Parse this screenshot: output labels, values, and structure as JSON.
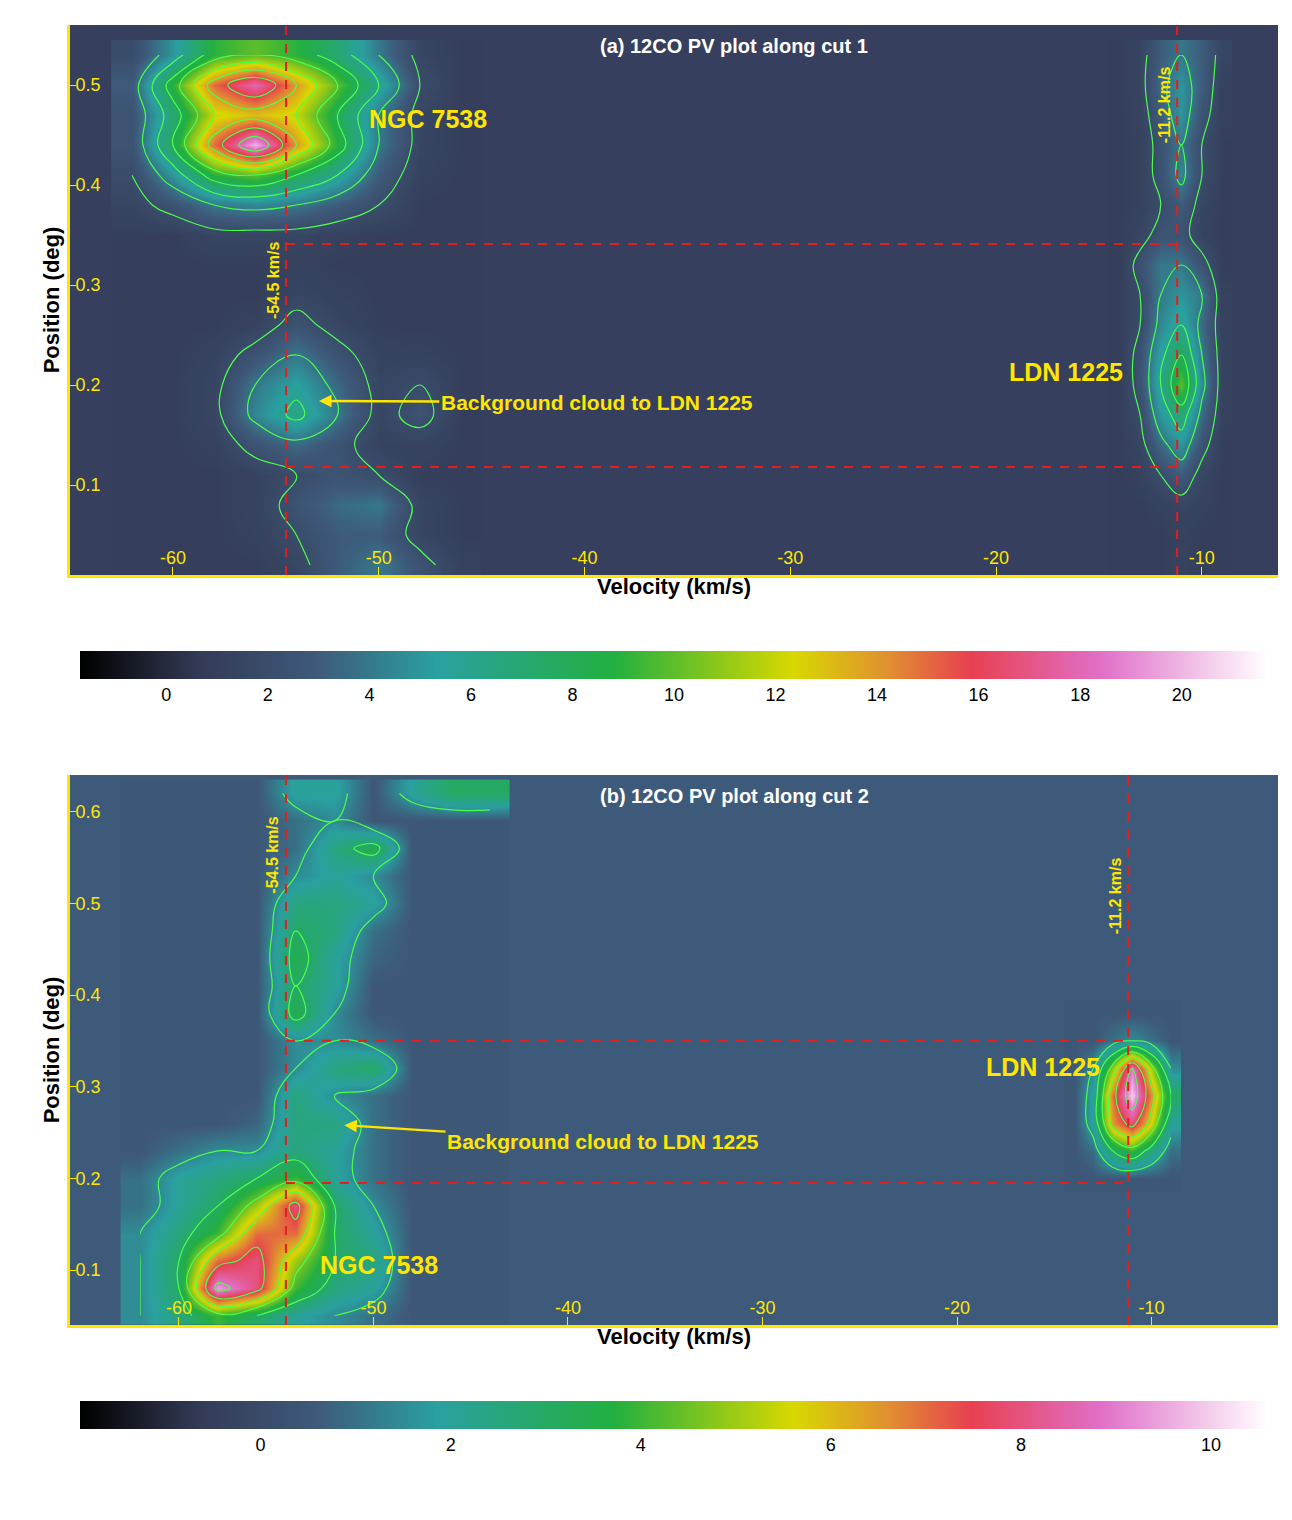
{
  "chart_data": [
    {
      "type": "heatmap",
      "title": "(a) 12CO PV plot along cut 1",
      "x_label": "Velocity (km/s)",
      "y_label": "Position (deg)",
      "xlim": [
        -65,
        -6.3
      ],
      "xticks": [
        -60,
        -50,
        -40,
        -30,
        -20,
        -10
      ],
      "ylim": [
        0.01,
        0.56
      ],
      "yticks": [
        0.1,
        0.2,
        0.3,
        0.4,
        0.5
      ],
      "grid": false,
      "zlim": [
        -1.7,
        21.7
      ],
      "zticks": [
        0,
        2,
        4,
        6,
        8,
        10,
        12,
        14,
        16,
        18,
        20
      ],
      "contour_levels": {
        "start": 2,
        "end": 20,
        "size": 2
      },
      "regions": [
        {
          "x": [
            -62,
            -60,
            -58,
            -56,
            -54,
            -52,
            -50,
            -48,
            -46
          ],
          "y": [
            0.02,
            0.05,
            0.08,
            0.11,
            0.14,
            0.17,
            0.2,
            0.23,
            0.26,
            0.29,
            0.32,
            0.35,
            0.38,
            0.41,
            0.44,
            0.47,
            0.5,
            0.53
          ],
          "z": [
            [
              1,
              1,
              1,
              1,
              1.5,
              3,
              4,
              2.5,
              1.2
            ],
            [
              1,
              1,
              1,
              1.2,
              2,
              3,
              3,
              1.5,
              1
            ],
            [
              1,
              1,
              1,
              1.3,
              2.5,
              3.5,
              4,
              1.5,
              1
            ],
            [
              1,
              1,
              1,
              1.3,
              2,
              2.5,
              2,
              1,
              1
            ],
            [
              1,
              1,
              1.2,
              2.5,
              3.5,
              2.5,
              1.3,
              1.3,
              1
            ],
            [
              1,
              1,
              1.5,
              4.5,
              6.5,
              4,
              1.5,
              2.5,
              1
            ],
            [
              1,
              1,
              1.5,
              4,
              5.5,
              3.5,
              1.5,
              2,
              1
            ],
            [
              1,
              1,
              1.3,
              2.5,
              4,
              2.5,
              1.3,
              1.2,
              1
            ],
            [
              1,
              1,
              1,
              1.3,
              2.5,
              1.5,
              1,
              1,
              1
            ],
            [
              1,
              1,
              1,
              1,
              1.5,
              1.2,
              1,
              1,
              1
            ],
            [
              1,
              1,
              1,
              1,
              1.2,
              1,
              1,
              1,
              1
            ],
            [
              1,
              1,
              1.5,
              1.5,
              1.5,
              1.2,
              1,
              1,
              1
            ],
            [
              1.5,
              2.5,
              4,
              4.5,
              4,
              3,
              2,
              1,
              1
            ],
            [
              2,
              5,
              9,
              10,
              8,
              6,
              3,
              1.2,
              1
            ],
            [
              2.5,
              8,
              15,
              20,
              14,
              9,
              4,
              1.5,
              1
            ],
            [
              2.5,
              7,
              12,
              13,
              12,
              8,
              4,
              1.5,
              1
            ],
            [
              3,
              9,
              15,
              18,
              14,
              10,
              6,
              2,
              1
            ],
            [
              2,
              5,
              9,
              10,
              9,
              7,
              4,
              1.5,
              1
            ]
          ]
        },
        {
          "x": [
            -14,
            -13,
            -12,
            -11,
            -10,
            -9
          ],
          "y": [
            0.02,
            0.05,
            0.08,
            0.11,
            0.14,
            0.17,
            0.2,
            0.23,
            0.26,
            0.29,
            0.32,
            0.35,
            0.38,
            0.41,
            0.44,
            0.47,
            0.5,
            0.53
          ],
          "z": [
            [
              1,
              1,
              1,
              1.3,
              1,
              1
            ],
            [
              1,
              1,
              1,
              1.2,
              1,
              1
            ],
            [
              1,
              1,
              1.2,
              1.5,
              1.2,
              1
            ],
            [
              1,
              1.2,
              2,
              3,
              1.5,
              1
            ],
            [
              1,
              1.5,
              3.5,
              5,
              2.5,
              1
            ],
            [
              1,
              2,
              5,
              7,
              3.5,
              1.2
            ],
            [
              1,
              2.5,
              6,
              10,
              4.5,
              1.3
            ],
            [
              1,
              2.5,
              5.5,
              8,
              4,
              1.3
            ],
            [
              1,
              2,
              4.5,
              6,
              3.5,
              1.2
            ],
            [
              1,
              2,
              4,
              5,
              4,
              1.2
            ],
            [
              1,
              2.5,
              4,
              4,
              2.5,
              1
            ],
            [
              1,
              1.5,
              2.5,
              2.5,
              1.3,
              1
            ],
            [
              1,
              1.2,
              2,
              3,
              1.5,
              1
            ],
            [
              1,
              1.2,
              2.5,
              4.5,
              2,
              1
            ],
            [
              1,
              1.2,
              2.5,
              4,
              2,
              1
            ],
            [
              1,
              1.3,
              3,
              5,
              2.5,
              1.2
            ],
            [
              1,
              1.5,
              3.5,
              5,
              3,
              1.2
            ],
            [
              1,
              1.5,
              3,
              4,
              3,
              1.5
            ]
          ]
        }
      ],
      "velocity_markers": [
        {
          "value": -54.5,
          "label": "-54.5 km/s",
          "label_y": 0.304
        },
        {
          "value": -11.2,
          "label": "-11.2 km/s",
          "label_y": 0.48
        }
      ],
      "position_range": [
        0.118,
        0.341
      ],
      "annotations": [
        {
          "text": "NGC 7538",
          "x": -47.6,
          "y": 0.466
        },
        {
          "text": "LDN 1225",
          "x": -16.6,
          "y": 0.213
        },
        {
          "text": "Background cloud to LDN 1225",
          "x": -39.4,
          "y": 0.183,
          "arrow_x": -52.9,
          "arrow_y": 0.184
        }
      ]
    },
    {
      "type": "heatmap",
      "title": "(b) 12CO PV plot along cut 2",
      "x_label": "Velocity (km/s)",
      "y_label": "Position (deg)",
      "xlim": [
        -65.6,
        -3.5
      ],
      "xticks": [
        -60,
        -50,
        -40,
        -30,
        -20,
        -10
      ],
      "ylim": [
        0.04,
        0.64
      ],
      "yticks": [
        0.1,
        0.2,
        0.3,
        0.4,
        0.5,
        0.6
      ],
      "grid": false,
      "zlim": [
        -1.9,
        10.6
      ],
      "zticks": [
        0,
        2,
        4,
        6,
        8,
        10
      ],
      "contour_levels": {
        "start": 1.5,
        "end": 10.5,
        "size": 1.5
      },
      "regions": [
        {
          "x": [
            -62,
            -60,
            -58,
            -56,
            -54,
            -52,
            -50,
            -48,
            -46,
            -44
          ],
          "y": [
            0.05,
            0.08,
            0.11,
            0.14,
            0.17,
            0.2,
            0.23,
            0.26,
            0.29,
            0.32,
            0.35,
            0.38,
            0.41,
            0.44,
            0.47,
            0.5,
            0.53,
            0.56,
            0.59,
            0.62
          ],
          "z": [
            [
              1.5,
              2.5,
              4,
              3,
              2,
              1.5,
              1,
              0.5,
              0.5,
              0.5
            ],
            [
              1.5,
              3,
              9.5,
              8,
              4,
              2.5,
              2,
              0.5,
              0.5,
              0.5
            ],
            [
              1.5,
              3,
              7,
              8,
              5,
              3,
              2.5,
              0.5,
              0.5,
              0.5
            ],
            [
              1.5,
              2.5,
              4,
              7,
              7,
              3,
              2,
              0.5,
              0.5,
              0.5
            ],
            [
              1,
              2,
              3,
              5,
              8,
              3,
              1.5,
              0.5,
              0.5,
              0.5
            ],
            [
              1,
              2,
              2.5,
              3,
              4,
              2,
              1,
              0.5,
              0.5,
              0.5
            ],
            [
              0.5,
              1,
              1.5,
              1.5,
              2.5,
              2,
              1,
              0.5,
              0.5,
              0.5
            ],
            [
              0.5,
              0.5,
              0.5,
              0.8,
              2.5,
              2.5,
              1,
              0.5,
              0.5,
              0.5
            ],
            [
              0.5,
              0.5,
              0.5,
              0.5,
              2.5,
              1.5,
              1,
              0.5,
              0.5,
              0.5
            ],
            [
              0.5,
              0.5,
              0.5,
              0.5,
              1.5,
              2.5,
              3,
              0.5,
              0.5,
              0.5
            ],
            [
              0.5,
              0.5,
              0.5,
              0.5,
              1.5,
              1.5,
              1,
              0.5,
              0.5,
              0.5
            ],
            [
              0.5,
              0.5,
              0.5,
              0.5,
              3.5,
              1.5,
              0.5,
              0.5,
              0.5,
              0.5
            ],
            [
              0.5,
              0.5,
              0.5,
              0.5,
              3,
              2,
              0.5,
              0.5,
              0.5,
              0.5
            ],
            [
              0.5,
              0.5,
              0.5,
              0.5,
              3.5,
              2,
              0.8,
              0.5,
              0.5,
              0.5
            ],
            [
              0.5,
              0.5,
              0.5,
              0.5,
              3,
              2.5,
              1,
              0.5,
              0.5,
              0.5
            ],
            [
              0.5,
              0.5,
              0.5,
              0.5,
              2.5,
              2.5,
              2,
              0.5,
              0.5,
              0.5
            ],
            [
              0.5,
              0.5,
              0.5,
              0.5,
              1.5,
              2,
              1.5,
              0.5,
              0.5,
              0.5
            ],
            [
              0.5,
              0.5,
              0.5,
              0.5,
              1,
              2.5,
              3.5,
              0.5,
              0.5,
              0.5
            ],
            [
              0.5,
              0.5,
              0.5,
              0.5,
              1,
              1.5,
              0.5,
              0.5,
              0.5,
              0.5
            ],
            [
              0.5,
              0.5,
              0.5,
              0.5,
              2,
              2,
              0.5,
              2,
              3,
              3
            ]
          ]
        },
        {
          "x": [
            -14,
            -13,
            -12,
            -11,
            -10,
            -9
          ],
          "y": [
            0.2,
            0.23,
            0.26,
            0.29,
            0.32,
            0.35,
            0.38
          ],
          "z": [
            [
              0.5,
              0.5,
              0.5,
              0.5,
              0.5,
              0.5
            ],
            [
              0.5,
              1,
              3,
              4,
              2.5,
              1
            ],
            [
              0.5,
              2,
              6.5,
              8,
              5.5,
              2
            ],
            [
              0.5,
              2,
              7,
              10,
              6.5,
              3
            ],
            [
              0.5,
              1.5,
              5,
              9,
              5,
              1.5
            ],
            [
              0.5,
              0.5,
              1,
              1.5,
              1,
              0.5
            ],
            [
              0.5,
              0.5,
              0.5,
              0.5,
              0.5,
              0.5
            ]
          ]
        }
      ],
      "velocity_markers": [
        {
          "value": -54.5,
          "label": "-54.5 km/s",
          "label_y": 0.553
        },
        {
          "value": -11.2,
          "label": "-11.2 km/s",
          "label_y": 0.508
        }
      ],
      "position_range": [
        0.195,
        0.35
      ],
      "annotations": [
        {
          "text": "NGC 7538",
          "x": -49.7,
          "y": 0.105
        },
        {
          "text": "LDN 1225",
          "x": -15.6,
          "y": 0.322
        },
        {
          "text": "Background cloud to LDN 1225",
          "x": -38.2,
          "y": 0.24,
          "arrow_x": -51.5,
          "arrow_y": 0.258
        }
      ]
    }
  ]
}
